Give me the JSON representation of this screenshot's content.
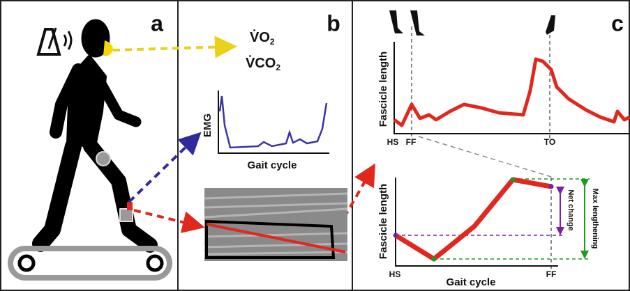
{
  "panel_labels": [
    "a",
    "b",
    "c"
  ],
  "gas": [
    {
      "base": "V̇O",
      "sub": "2"
    },
    {
      "base": "V̇CO",
      "sub": "2"
    }
  ],
  "emg": {
    "y_label": "EMG",
    "x_label": "Gait cycle"
  },
  "top_plot": {
    "y_label": "Fascicle length",
    "events": [
      "HS",
      "FF",
      "TO"
    ]
  },
  "bottom_plot": {
    "y_label": "Fascicle length",
    "x_label": "Gait cycle",
    "events": [
      "HS",
      "FF"
    ],
    "annotations": [
      "Net change",
      "Max lengthening"
    ]
  }
}
